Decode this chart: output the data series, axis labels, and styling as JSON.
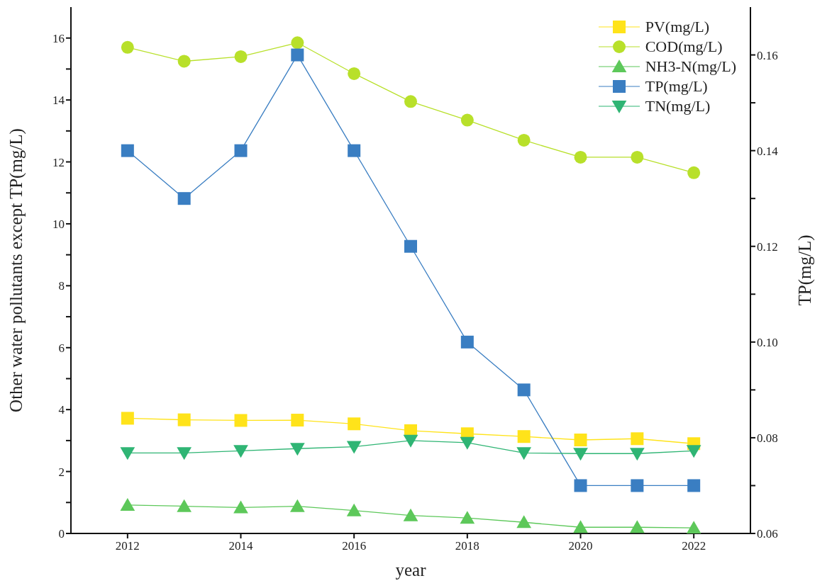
{
  "chart_data": {
    "type": "line",
    "xlabel": "year",
    "ylabel": "Other water pollutants except TP(mg/L)",
    "y2label": "TP(mg/L)",
    "x": [
      2012,
      2013,
      2014,
      2015,
      2016,
      2017,
      2018,
      2019,
      2020,
      2021,
      2022
    ],
    "series": [
      {
        "name": "PV(mg/L)",
        "color": "#ffe31a",
        "marker": "square",
        "values": [
          3.72,
          3.67,
          3.65,
          3.66,
          3.54,
          3.32,
          3.22,
          3.13,
          3.02,
          3.06,
          2.9
        ]
      },
      {
        "name": "COD(mg/L)",
        "color": "#b8e02a",
        "marker": "circle",
        "values": [
          15.7,
          15.25,
          15.4,
          15.85,
          14.85,
          13.95,
          13.35,
          12.7,
          12.15,
          12.15,
          11.65
        ]
      },
      {
        "name": "NH3-N(mg/L)",
        "color": "#5dc85a",
        "marker": "triangle",
        "values": [
          0.92,
          0.88,
          0.84,
          0.88,
          0.74,
          0.58,
          0.5,
          0.36,
          0.2,
          0.2,
          0.18
        ]
      },
      {
        "name": "TP(mg/L)",
        "color": "#3a7ec2",
        "marker": "square",
        "axis": "y2",
        "values": [
          0.14,
          0.13,
          0.14,
          0.16,
          0.14,
          0.12,
          0.1,
          0.09,
          0.07,
          0.07,
          0.07
        ]
      },
      {
        "name": "TN(mg/L)",
        "color": "#2fb574",
        "marker": "triangle-down",
        "values": [
          2.6,
          2.6,
          2.67,
          2.74,
          2.8,
          3.0,
          2.93,
          2.6,
          2.58,
          2.58,
          2.67
        ]
      }
    ],
    "xlim": [
      2011,
      2023
    ],
    "xticks": [
      2012,
      2014,
      2016,
      2018,
      2020,
      2022
    ],
    "ylim": [
      0,
      17
    ],
    "yticks": [
      0,
      {
        "value": 1,
        "label": null
      },
      2,
      {
        "value": 3,
        "label": null
      },
      4,
      {
        "value": 5,
        "label": null
      },
      6,
      {
        "value": 7,
        "label": null
      },
      8,
      {
        "value": 9,
        "label": null
      },
      10,
      {
        "value": 11,
        "label": null
      },
      12,
      {
        "value": 13,
        "label": null
      },
      14,
      {
        "value": 15,
        "label": null
      },
      16
    ],
    "y2lim": [
      0.06,
      0.17
    ],
    "y2ticks": [
      {
        "value": 0.06,
        "label": "0.06"
      },
      {
        "value": 0.07,
        "label": null
      },
      {
        "value": 0.08,
        "label": "0.08"
      },
      {
        "value": 0.09,
        "label": null
      },
      {
        "value": 0.1,
        "label": "0.10"
      },
      {
        "value": 0.11,
        "label": null
      },
      {
        "value": 0.12,
        "label": "0.12"
      },
      {
        "value": 0.13,
        "label": null
      },
      {
        "value": 0.14,
        "label": "0.14"
      },
      {
        "value": 0.15,
        "label": null
      },
      {
        "value": 0.16,
        "label": "0.16"
      }
    ],
    "grid": false,
    "legend": "top right"
  }
}
